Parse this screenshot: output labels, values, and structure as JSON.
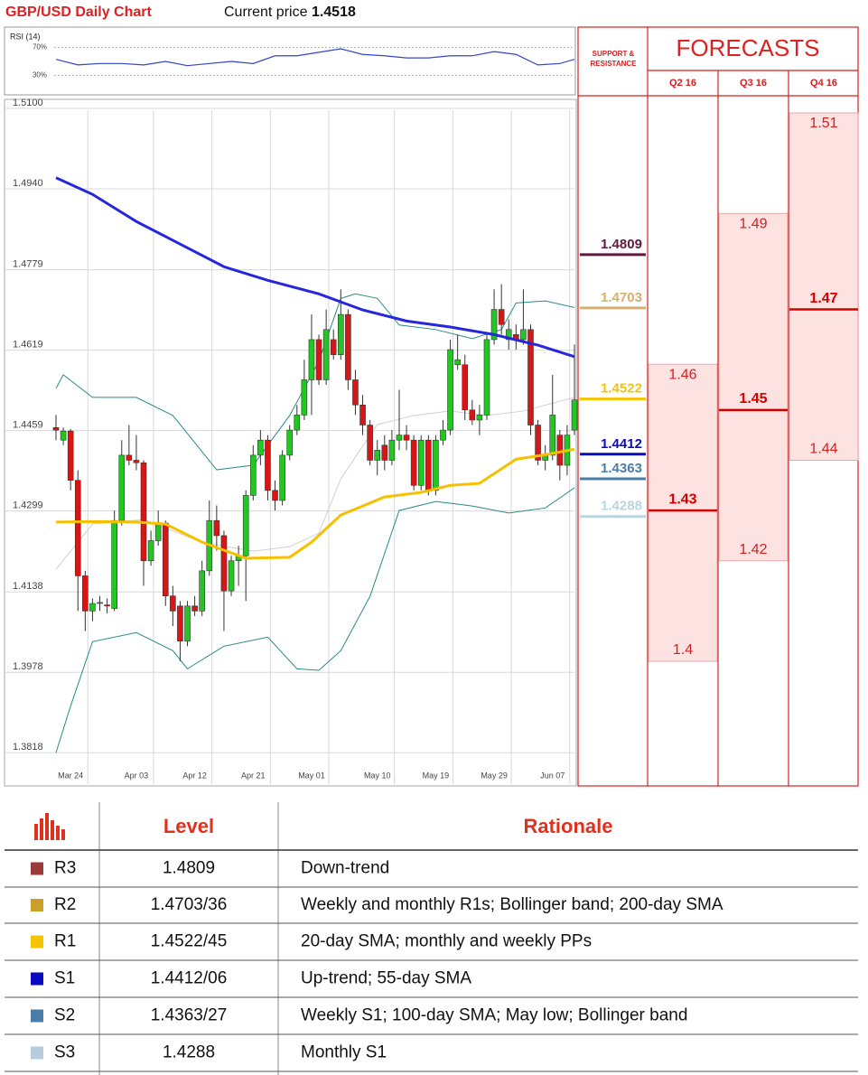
{
  "header": {
    "title": "GBP/USD Daily Chart",
    "price_label": "Current price",
    "current_price": 1.4518
  },
  "chart_data": [
    {
      "type": "candlestick",
      "categories": [
        null,
        null,
        "Mar 24",
        null,
        null,
        null,
        null,
        null,
        null,
        null,
        null,
        "Apr 03",
        null,
        null,
        null,
        null,
        null,
        null,
        null,
        "Apr 12",
        null,
        null,
        null,
        null,
        null,
        null,
        null,
        "Apr 21",
        null,
        null,
        null,
        null,
        null,
        null,
        null,
        "May 01",
        null,
        null,
        null,
        null,
        null,
        null,
        null,
        null,
        "May 10",
        null,
        null,
        null,
        null,
        null,
        null,
        null,
        "May 19",
        null,
        null,
        null,
        null,
        null,
        null,
        null,
        "May 29",
        null,
        null,
        null,
        null,
        null,
        null,
        null,
        "Jun 07",
        null,
        null,
        null
      ],
      "open": [
        1.4465,
        1.444,
        1.4458,
        1.436,
        1.417,
        1.41,
        1.4115,
        1.4112,
        1.4105,
        1.428,
        1.441,
        1.44,
        1.4395,
        1.42,
        1.424,
        1.4275,
        1.413,
        1.411,
        1.404,
        1.411,
        1.41,
        1.418,
        1.428,
        1.425,
        1.414,
        1.42,
        1.421,
        1.433,
        1.441,
        1.444,
        1.434,
        1.432,
        1.441,
        1.446,
        1.449,
        1.456,
        1.464,
        1.456,
        1.464,
        1.461,
        1.469,
        1.456,
        1.451,
        1.447,
        1.44,
        1.443,
        1.44,
        1.444,
        1.445,
        1.444,
        1.435,
        1.444,
        1.434,
        1.444,
        1.446,
        1.459,
        1.459,
        1.45,
        1.448,
        1.449,
        1.464,
        1.47,
        1.464,
        1.465,
        1.464,
        1.466,
        1.447,
        1.44,
        1.441,
        1.445,
        1.439,
        1.446
      ],
      "high": [
        1.449,
        1.4465,
        1.4462,
        1.438,
        1.418,
        1.4125,
        1.413,
        1.4125,
        1.43,
        1.444,
        1.447,
        1.445,
        1.44,
        1.426,
        1.43,
        1.428,
        1.415,
        1.412,
        1.412,
        1.413,
        1.42,
        1.432,
        1.431,
        1.426,
        1.421,
        1.423,
        1.434,
        1.443,
        1.446,
        1.445,
        1.436,
        1.442,
        1.447,
        1.451,
        1.46,
        1.469,
        1.465,
        1.47,
        1.466,
        1.474,
        1.47,
        1.458,
        1.453,
        1.448,
        1.444,
        1.445,
        1.446,
        1.454,
        1.447,
        1.445,
        1.445,
        1.445,
        1.445,
        1.448,
        1.464,
        1.465,
        1.461,
        1.452,
        1.451,
        1.465,
        1.474,
        1.475,
        1.468,
        1.467,
        1.474,
        1.467,
        1.448,
        1.443,
        1.457,
        1.446,
        1.447,
        1.463
      ],
      "low": [
        1.444,
        1.443,
        1.434,
        1.41,
        1.406,
        1.408,
        1.41,
        1.4095,
        1.41,
        1.427,
        1.439,
        1.438,
        1.415,
        1.419,
        1.423,
        1.411,
        1.407,
        1.4,
        1.403,
        1.409,
        1.409,
        1.417,
        1.422,
        1.406,
        1.413,
        1.415,
        1.412,
        1.432,
        1.439,
        1.432,
        1.43,
        1.431,
        1.44,
        1.445,
        1.448,
        1.449,
        1.455,
        1.455,
        1.46,
        1.46,
        1.454,
        1.449,
        1.445,
        1.439,
        1.437,
        1.438,
        1.439,
        1.442,
        1.442,
        1.434,
        1.434,
        1.433,
        1.433,
        1.443,
        1.445,
        1.458,
        1.448,
        1.447,
        1.445,
        1.448,
        1.463,
        1.465,
        1.462,
        1.462,
        1.463,
        1.445,
        1.439,
        1.438,
        1.44,
        1.436,
        1.437,
        1.445
      ],
      "close": [
        1.446,
        1.4458,
        1.436,
        1.417,
        1.41,
        1.4115,
        1.4117,
        1.411,
        1.428,
        1.441,
        1.44,
        1.4395,
        1.42,
        1.424,
        1.4275,
        1.413,
        1.41,
        1.404,
        1.411,
        1.41,
        1.418,
        1.428,
        1.425,
        1.414,
        1.42,
        1.421,
        1.433,
        1.441,
        1.444,
        1.434,
        1.432,
        1.441,
        1.446,
        1.449,
        1.456,
        1.464,
        1.456,
        1.466,
        1.461,
        1.469,
        1.456,
        1.451,
        1.447,
        1.44,
        1.442,
        1.44,
        1.444,
        1.445,
        1.444,
        1.435,
        1.444,
        1.434,
        1.444,
        1.446,
        1.462,
        1.46,
        1.45,
        1.448,
        1.449,
        1.464,
        1.47,
        1.467,
        1.466,
        1.464,
        1.466,
        1.447,
        1.44,
        1.441,
        1.449,
        1.439,
        1.445,
        1.452
      ],
      "up_color": "#22c722",
      "down_color": "#dd1414",
      "ylim": [
        1.3752,
        1.51
      ],
      "yticks": [
        {
          "value": 1.51,
          "label": "1.5100"
        },
        {
          "value": 1.494,
          "label": "1.4940"
        },
        1.4779,
        1.4619,
        1.4459,
        1.4299,
        1.4138,
        1.3978,
        1.3818
      ],
      "grid": true,
      "lines": [
        {
          "color": "#2a8a8a",
          "width": 1,
          "x": [
            0,
            1,
            5,
            11,
            16,
            22,
            27,
            32,
            36,
            39,
            41,
            44,
            47,
            52,
            57,
            61,
            63,
            67,
            71
          ],
          "values": [
            1.4543,
            1.457,
            1.4525,
            1.4525,
            1.4489,
            1.4381,
            1.439,
            1.4489,
            1.4597,
            1.4722,
            1.4731,
            1.4722,
            1.4669,
            1.466,
            1.4642,
            1.466,
            1.4713,
            1.4717,
            1.4704
          ]
        },
        {
          "color": "#2a8a8a",
          "width": 1,
          "x": [
            0,
            2,
            5,
            11,
            16,
            18,
            23,
            29,
            33,
            36,
            39,
            43,
            47,
            52,
            57,
            62,
            67,
            71
          ],
          "values": [
            1.3818,
            1.3911,
            1.4039,
            1.4057,
            1.4021,
            1.3985,
            1.403,
            1.4048,
            1.3985,
            1.3982,
            1.4021,
            1.4129,
            1.43,
            1.4318,
            1.4309,
            1.4295,
            1.4305,
            1.4345
          ]
        },
        {
          "color": "#d0d0d0",
          "width": 1,
          "x": [
            0,
            5,
            12,
            20,
            27,
            32,
            36,
            39,
            44,
            49,
            54,
            59,
            64,
            71
          ],
          "values": [
            1.4183,
            1.4273,
            1.4282,
            1.4237,
            1.4219,
            1.4228,
            1.4255,
            1.4363,
            1.4471,
            1.4489,
            1.4498,
            1.4489,
            1.4498,
            1.4525
          ]
        },
        {
          "color": "#2626dc",
          "width": 3,
          "x": [
            0,
            5,
            11,
            17,
            23,
            29,
            36,
            42,
            48,
            54,
            60,
            66,
            71
          ],
          "values": [
            1.4962,
            1.4929,
            1.4875,
            1.483,
            1.4785,
            1.4758,
            1.4731,
            1.4699,
            1.4677,
            1.4665,
            1.465,
            1.4629,
            1.4606
          ]
        },
        {
          "color": "#f5c000",
          "width": 3,
          "x": [
            0,
            5,
            11,
            15,
            20,
            26,
            32,
            35,
            39,
            45,
            50,
            54,
            58,
            63,
            67,
            71
          ],
          "values": [
            1.4277,
            1.4278,
            1.4277,
            1.4273,
            1.4237,
            1.4205,
            1.4207,
            1.4237,
            1.4291,
            1.4327,
            1.4336,
            1.435,
            1.4354,
            1.4402,
            1.4411,
            1.4422
          ]
        }
      ],
      "sr_header": [
        "SUPPORT &",
        "RESISTANCE"
      ],
      "levels": [
        {
          "value": 1.4809,
          "color": "#5e1a3c"
        },
        {
          "value": 1.4703,
          "color": "#d4b06a"
        },
        {
          "value": 1.4522,
          "color": "#f5c400"
        },
        {
          "value": 1.4412,
          "color": "#0a0ac0"
        },
        {
          "value": 1.4363,
          "color": "#4a7ea8"
        },
        {
          "value": 1.4288,
          "color": "#b8d6dc"
        }
      ],
      "forecasts": {
        "title": "FORECASTS",
        "columns": [
          {
            "label": "Q2 16",
            "high": 1.46,
            "mid": 1.43,
            "low": 1.4
          },
          {
            "label": "Q3 16",
            "high": 1.49,
            "mid": 1.45,
            "low": 1.42
          },
          {
            "label": "Q4 16",
            "high": 1.51,
            "mid": 1.47,
            "low": 1.44
          }
        ]
      }
    },
    {
      "type": "line",
      "title": "RSI (14)",
      "color": "#3344cc",
      "x": [
        0,
        3,
        6,
        9,
        12,
        15,
        18,
        21,
        24,
        27,
        30,
        33,
        36,
        39,
        42,
        45,
        48,
        51,
        54,
        57,
        60,
        63,
        66,
        69,
        71
      ],
      "values": [
        53,
        45,
        47,
        47,
        45,
        50,
        44,
        47,
        50,
        47,
        58,
        58,
        63,
        68,
        60,
        58,
        55,
        55,
        58,
        58,
        64,
        60,
        45,
        47,
        53
      ],
      "xlim": [
        0,
        71
      ],
      "ylim": [
        5,
        95
      ],
      "yticks": [
        {
          "value": 70,
          "label": "70%"
        },
        {
          "value": 30,
          "label": "30%"
        }
      ]
    }
  ],
  "table": {
    "columns": [
      "Level",
      "Rationale"
    ],
    "rows": [
      {
        "label": "R3",
        "level": "1.4809",
        "rationale": "Down-trend",
        "color": "#9b3a3a"
      },
      {
        "label": "R2",
        "level": "1.4703/36",
        "rationale": "Weekly and monthly R1s; Bollinger band; 200-day SMA",
        "color": "#c9a02a"
      },
      {
        "label": "R1",
        "level": "1.4522/45",
        "rationale": "20-day SMA; monthly and weekly PPs",
        "color": "#f5c400"
      },
      {
        "label": "S1",
        "level": "1.4412/06",
        "rationale": "Up-trend; 55-day SMA",
        "color": "#0a0ac0"
      },
      {
        "label": "S2",
        "level": "1.4363/27",
        "rationale": "Weekly S1; 100-day SMA; May low; Bollinger band",
        "color": "#4a7ea8"
      },
      {
        "label": "S3",
        "level": "1.4288",
        "rationale": "Monthly S1",
        "color": "#b8cce0"
      }
    ]
  }
}
